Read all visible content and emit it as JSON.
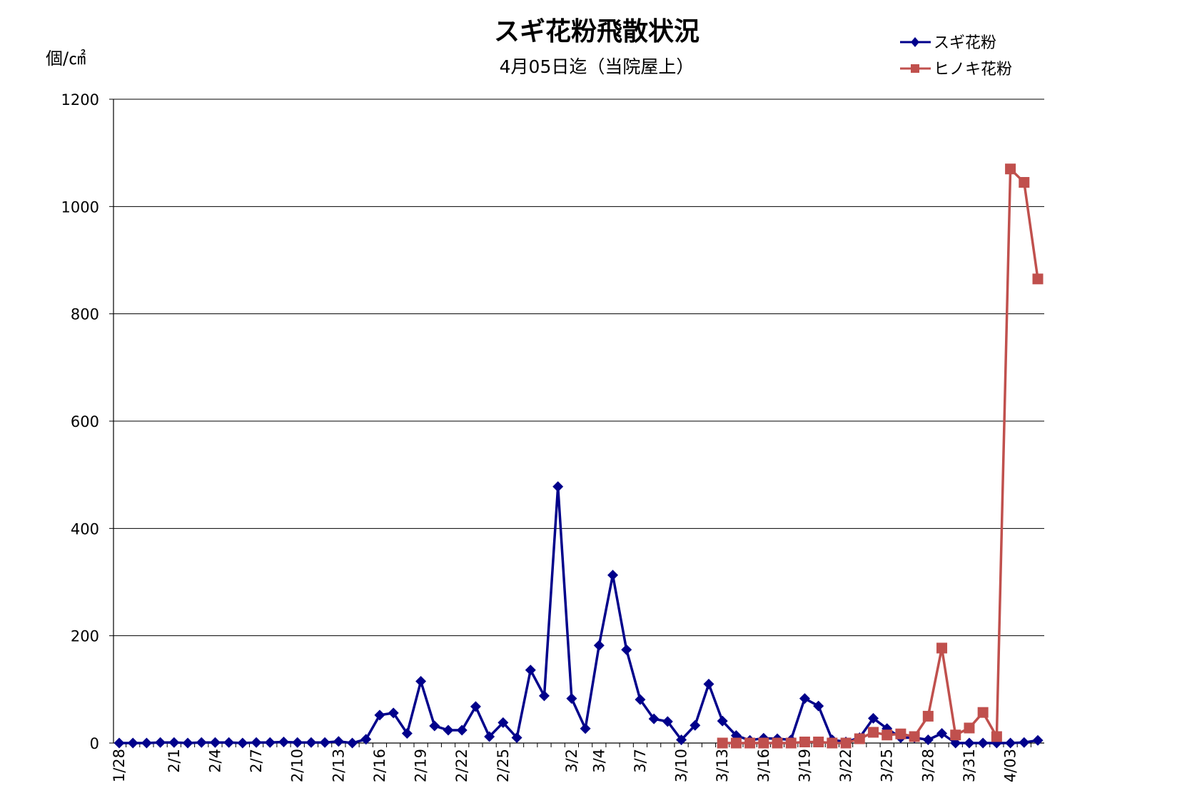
{
  "chart_data": {
    "type": "line",
    "title": "スギ花粉飛散状況",
    "subtitle": "4月05日迄（当院屋上）",
    "ylabel": "個/㎠",
    "xlabel": "",
    "ylim": [
      0,
      1200
    ],
    "yticks": [
      0,
      200,
      400,
      600,
      800,
      1000,
      1200
    ],
    "grid": true,
    "legend_position": "top-right",
    "x_dates": [
      "1/28",
      "1/29",
      "1/30",
      "1/31",
      "2/1",
      "2/2",
      "2/3",
      "2/4",
      "2/5",
      "2/6",
      "2/7",
      "2/8",
      "2/9",
      "2/10",
      "2/11",
      "2/12",
      "2/13",
      "2/14",
      "2/15",
      "2/16",
      "2/17",
      "2/18",
      "2/19",
      "2/20",
      "2/21",
      "2/22",
      "2/23",
      "2/24",
      "2/25",
      "2/26",
      "2/27",
      "2/28",
      "3/1",
      "3/2",
      "3/3",
      "3/4",
      "3/5",
      "3/6",
      "3/7",
      "3/8",
      "3/9",
      "3/10",
      "3/11",
      "3/12",
      "3/13",
      "3/14",
      "3/15",
      "3/16",
      "3/17",
      "3/18",
      "3/19",
      "3/20",
      "3/21",
      "3/22",
      "3/23",
      "3/24",
      "3/25",
      "3/26",
      "3/27",
      "3/28",
      "3/29",
      "3/30",
      "3/31",
      "4/01",
      "4/02",
      "4/03",
      "4/04",
      "4/05"
    ],
    "x_tick_labels": [
      "1/28",
      "2/1",
      "2/4",
      "2/7",
      "2/10",
      "2/13",
      "2/16",
      "2/19",
      "2/22",
      "2/25",
      "3/2",
      "3/4",
      "3/7",
      "3/10",
      "3/13",
      "3/16",
      "3/19",
      "3/22",
      "3/25",
      "3/28",
      "3/31",
      "4/03"
    ],
    "series": [
      {
        "name": "スギ花粉",
        "color": "#00008B",
        "marker": "diamond",
        "start_date": "1/28",
        "values": [
          0,
          0,
          0,
          1,
          1,
          0,
          1,
          1,
          1,
          0,
          1,
          1,
          2,
          1,
          1,
          1,
          3,
          0,
          7,
          52,
          56,
          18,
          115,
          32,
          24,
          24,
          68,
          12,
          38,
          10,
          136,
          88,
          478,
          83,
          27,
          182,
          313,
          174,
          81,
          45,
          40,
          6,
          33,
          110,
          41,
          14,
          5,
          9,
          8,
          6,
          83,
          69,
          6,
          2,
          10,
          46,
          27,
          10,
          10,
          6,
          18,
          0,
          0,
          0,
          0,
          0,
          1,
          5
        ]
      },
      {
        "name": "ヒノキ花粉",
        "color": "#C0504D",
        "marker": "square",
        "start_date": "3/13",
        "values": [
          0,
          0,
          0,
          0,
          0,
          0,
          2,
          2,
          0,
          0,
          8,
          20,
          15,
          17,
          12,
          50,
          177,
          15,
          28,
          57,
          12,
          1070,
          1045,
          865
        ]
      }
    ]
  }
}
